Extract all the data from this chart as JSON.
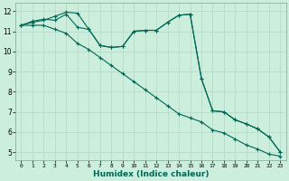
{
  "xlabel": "Humidex (Indice chaleur)",
  "bg_color": "#cceedd",
  "grid_color": "#bbddcc",
  "line_color": "#006655",
  "xlim": [
    -0.5,
    23.5
  ],
  "ylim": [
    4.6,
    12.4
  ],
  "xticks": [
    0,
    1,
    2,
    3,
    4,
    5,
    6,
    7,
    8,
    9,
    10,
    11,
    12,
    13,
    14,
    15,
    16,
    17,
    18,
    19,
    20,
    21,
    22,
    23
  ],
  "yticks": [
    5,
    6,
    7,
    8,
    9,
    10,
    11,
    12
  ],
  "series1_x": [
    0,
    1,
    2,
    3,
    4,
    5,
    6,
    7,
    8,
    9,
    10,
    11,
    12,
    13,
    14,
    15,
    16,
    17,
    18,
    19,
    20,
    21,
    22,
    23
  ],
  "series1_y": [
    11.3,
    11.5,
    11.6,
    11.55,
    11.85,
    11.2,
    11.1,
    10.3,
    10.2,
    10.25,
    11.0,
    11.05,
    11.05,
    11.45,
    11.8,
    11.85,
    8.65,
    7.05,
    7.0,
    6.6,
    6.4,
    6.15,
    5.75,
    5.0
  ],
  "series2_x": [
    0,
    1,
    2,
    3,
    4,
    5,
    6,
    7,
    8,
    9,
    10,
    11,
    12,
    13,
    14,
    15,
    16,
    17,
    18,
    19,
    20,
    21,
    22,
    23
  ],
  "series2_y": [
    11.3,
    11.3,
    11.3,
    11.1,
    10.9,
    10.4,
    10.1,
    9.7,
    9.3,
    8.9,
    8.5,
    8.1,
    7.7,
    7.3,
    6.9,
    6.7,
    6.5,
    6.1,
    5.95,
    5.65,
    5.35,
    5.15,
    4.9,
    4.8
  ],
  "series3_x": [
    0,
    1,
    2,
    3,
    4,
    5,
    6,
    7,
    8,
    9,
    10,
    11,
    12,
    13,
    14,
    15,
    16,
    17,
    18,
    19,
    20,
    21,
    22,
    23
  ],
  "series3_y": [
    11.3,
    11.45,
    11.55,
    11.75,
    11.95,
    11.9,
    11.1,
    10.3,
    10.2,
    10.25,
    11.0,
    11.05,
    11.05,
    11.45,
    11.8,
    11.85,
    8.65,
    7.05,
    7.0,
    6.6,
    6.4,
    6.15,
    5.75,
    5.0
  ]
}
